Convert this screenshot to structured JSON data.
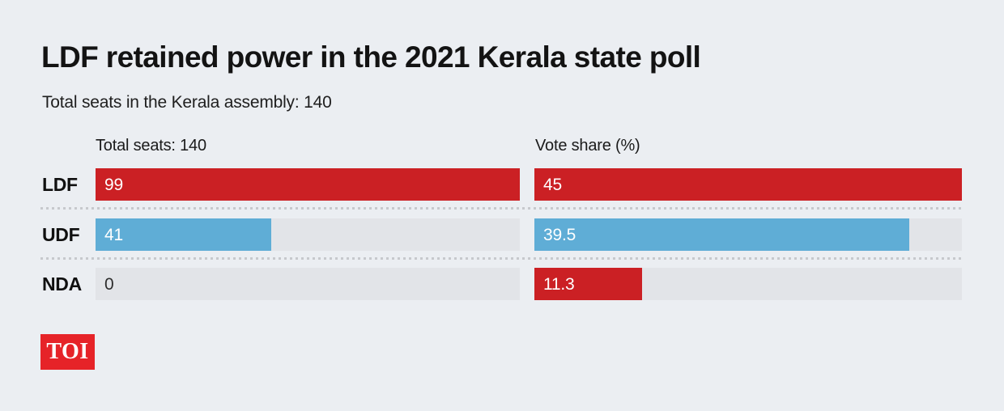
{
  "header": {
    "title": "LDF retained power in the 2021 Kerala state poll",
    "subtitle": "Total seats in the Kerala assembly: 140"
  },
  "chart_data": {
    "type": "bar",
    "orientation": "horizontal",
    "categories": [
      "LDF",
      "UDF",
      "NDA"
    ],
    "panels": [
      {
        "header": "Total seats: 140",
        "axis_min": 0,
        "axis_max": 99,
        "values": [
          99,
          41,
          0
        ],
        "value_labels": [
          "99",
          "41",
          "0"
        ],
        "bar_colors": [
          "#cb2024",
          "#5fadd6",
          null
        ],
        "label_colors": [
          "#ffffff",
          "#ffffff",
          "#2d2d2d"
        ]
      },
      {
        "header": "Vote share (%)",
        "axis_min": 0,
        "axis_max": 45,
        "values": [
          45,
          39.5,
          11.3
        ],
        "value_labels": [
          "45",
          "39.5",
          "11.3"
        ],
        "bar_colors": [
          "#cb2024",
          "#5fadd6",
          "#cb2024"
        ],
        "label_colors": [
          "#ffffff",
          "#ffffff",
          "#ffffff"
        ]
      }
    ],
    "grid": "dotted-row-separators",
    "legend_position": "none"
  },
  "colors": {
    "background": "#ebeef2",
    "bar_track": "#e2e4e8",
    "ldf_red": "#cb2024",
    "udf_blue": "#5fadd6",
    "separator_dot": "#c7c9cd",
    "text_primary": "#131313",
    "logo_red": "#e62328"
  },
  "footer": {
    "logo_text": "TOI"
  }
}
